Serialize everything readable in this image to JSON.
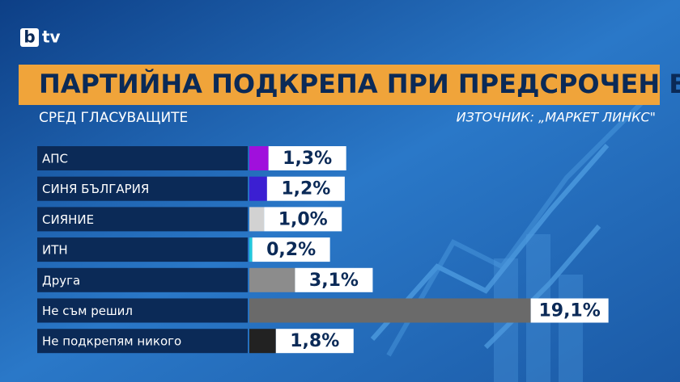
{
  "logo_letter": "b",
  "logo_text": "tv",
  "chart_data": {
    "type": "bar",
    "orientation": "horizontal",
    "title": "ПАРТИЙНА ПОДКРЕПА ПРИ ПРЕДСРОЧЕН ВОТ",
    "subtitle": "СРЕД ГЛАСУВАЩИТЕ",
    "source": "ИЗТОЧНИК: „МАРКЕТ ЛИНКС\"",
    "categories": [
      "АПС",
      "СИНЯ БЪЛГАРИЯ",
      "СИЯНИЕ",
      "ИТН",
      "Друга",
      "Не съм решил",
      "Не подкрепям никого"
    ],
    "values": [
      1.3,
      1.2,
      1.0,
      0.2,
      3.1,
      19.1,
      1.8
    ],
    "value_labels": [
      "1,3%",
      "1,2%",
      "1,0%",
      "0,2%",
      "3,1%",
      "19,1%",
      "1,8%"
    ],
    "colors": [
      "#a010dc",
      "#3b1fd2",
      "#d2d2d2",
      "#22c8dc",
      "#8c8c8c",
      "#6a6a6a",
      "#222222"
    ]
  }
}
